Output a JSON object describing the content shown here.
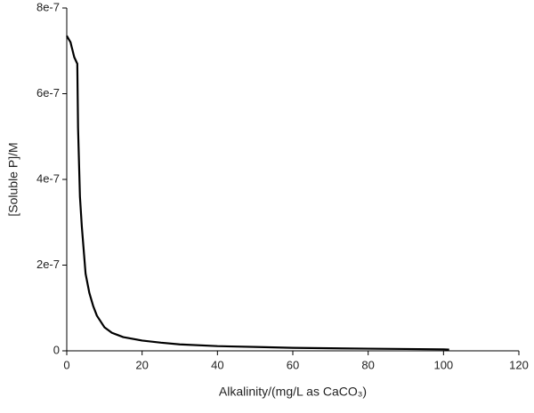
{
  "chart_data": {
    "type": "line",
    "x_label": "Alkalinity/(mg/L as CaCO₃)",
    "y_label": "[Soluble P]/M",
    "x": [
      0,
      1,
      2,
      2.8,
      3,
      3.5,
      4,
      5,
      6,
      7,
      8,
      10,
      12,
      15,
      20,
      25,
      30,
      40,
      50,
      60,
      80,
      100,
      101.5
    ],
    "series": [
      {
        "color": "#000000",
        "values": [
          7.35e-07,
          7.2e-07,
          6.85e-07,
          6.7e-07,
          5.2e-07,
          3.6e-07,
          2.9e-07,
          1.8e-07,
          1.35e-07,
          1.05e-07,
          8.2e-08,
          5.5e-08,
          4.2e-08,
          3.2e-08,
          2.4e-08,
          1.9e-08,
          1.5e-08,
          1.1e-08,
          9e-09,
          7e-09,
          5e-09,
          3.5e-09,
          3e-09
        ]
      }
    ],
    "xlim": [
      0,
      120
    ],
    "xticks": [
      0,
      20,
      40,
      60,
      80,
      100,
      120
    ],
    "ylim": [
      0,
      8e-07
    ],
    "yticks": [
      0,
      2e-07,
      4e-07,
      6e-07,
      8e-07
    ]
  }
}
